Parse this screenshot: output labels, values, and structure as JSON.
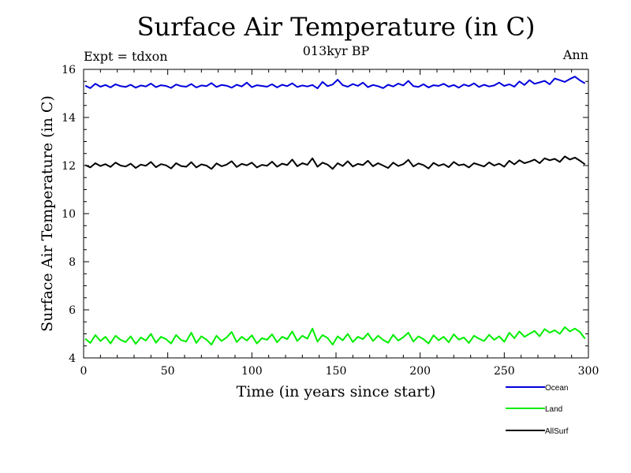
{
  "chart_data": {
    "type": "line",
    "title": "Surface Air Temperature (in C)",
    "subtitle": "013kyr BP",
    "experiment_label": "Expt = tdxon",
    "season_label": "Ann",
    "xlabel": "Time (in years since start)",
    "ylabel": "Surface Air Temperature (in C)",
    "xlim": [
      0,
      300
    ],
    "ylim": [
      4,
      16
    ],
    "x_ticks": [
      "0",
      "50",
      "100",
      "150",
      "200",
      "250",
      "300"
    ],
    "y_ticks": [
      "4",
      "6",
      "8",
      "10",
      "12",
      "14",
      "16"
    ],
    "grid": false,
    "legend_position": "below-right",
    "series": [
      {
        "name": "Ocean",
        "color": "#0000dd",
        "x_start": 1,
        "x_step": 3,
        "values": [
          15.32,
          15.22,
          15.4,
          15.28,
          15.35,
          15.25,
          15.38,
          15.3,
          15.27,
          15.36,
          15.24,
          15.33,
          15.29,
          15.41,
          15.26,
          15.34,
          15.31,
          15.23,
          15.37,
          15.3,
          15.28,
          15.39,
          15.25,
          15.33,
          15.3,
          15.43,
          15.27,
          15.35,
          15.32,
          15.24,
          15.36,
          15.29,
          15.45,
          15.26,
          15.34,
          15.31,
          15.28,
          15.38,
          15.25,
          15.36,
          15.3,
          15.42,
          15.27,
          15.33,
          15.29,
          15.35,
          15.21,
          15.48,
          15.3,
          15.37,
          15.57,
          15.34,
          15.28,
          15.39,
          15.31,
          15.45,
          15.26,
          15.35,
          15.3,
          15.22,
          15.36,
          15.29,
          15.41,
          15.33,
          15.52,
          15.3,
          15.27,
          15.38,
          15.25,
          15.34,
          15.31,
          15.4,
          15.28,
          15.35,
          15.24,
          15.37,
          15.3,
          15.42,
          15.27,
          15.36,
          15.29,
          15.33,
          15.45,
          15.31,
          15.38,
          15.28,
          15.5,
          15.35,
          15.55,
          15.4,
          15.46,
          15.52,
          15.38,
          15.62,
          15.55,
          15.48,
          15.6,
          15.7,
          15.54,
          15.42
        ]
      },
      {
        "name": "Land",
        "color": "#00ee00",
        "x_start": 1,
        "x_step": 3,
        "values": [
          4.8,
          4.62,
          4.95,
          4.7,
          4.88,
          4.6,
          4.92,
          4.75,
          4.66,
          4.9,
          4.58,
          4.85,
          4.72,
          5.0,
          4.63,
          4.88,
          4.78,
          4.6,
          4.95,
          4.74,
          4.68,
          5.05,
          4.62,
          4.9,
          4.76,
          4.55,
          4.92,
          4.7,
          4.85,
          5.08,
          4.66,
          4.88,
          4.72,
          4.94,
          4.6,
          4.82,
          4.75,
          4.98,
          4.65,
          4.88,
          4.78,
          5.1,
          4.7,
          4.92,
          4.8,
          5.22,
          4.68,
          4.95,
          4.83,
          4.55,
          4.9,
          4.73,
          5.0,
          4.66,
          4.88,
          4.78,
          5.02,
          4.7,
          4.92,
          4.75,
          4.63,
          4.96,
          4.72,
          4.86,
          5.05,
          4.68,
          4.9,
          4.78,
          4.6,
          4.94,
          4.73,
          4.88,
          4.65,
          4.98,
          4.76,
          4.85,
          4.62,
          4.92,
          4.8,
          4.7,
          4.96,
          4.75,
          4.9,
          4.67,
          5.05,
          4.82,
          5.1,
          4.88,
          5.0,
          5.12,
          4.9,
          5.2,
          5.05,
          5.15,
          5.0,
          5.28,
          5.1,
          5.22,
          5.08,
          4.8
        ]
      },
      {
        "name": "AllSurf",
        "color": "#000000",
        "x_start": 1,
        "x_step": 3,
        "values": [
          12.02,
          11.92,
          12.1,
          11.98,
          12.06,
          11.94,
          12.12,
          12.0,
          11.96,
          12.08,
          11.9,
          12.04,
          11.99,
          12.15,
          11.93,
          12.06,
          12.01,
          11.88,
          12.1,
          11.98,
          11.95,
          12.14,
          11.92,
          12.05,
          12.0,
          11.86,
          12.09,
          11.97,
          12.04,
          12.18,
          11.94,
          12.07,
          12.01,
          12.12,
          11.92,
          12.03,
          11.99,
          12.16,
          11.95,
          12.08,
          12.02,
          12.25,
          11.97,
          12.1,
          12.03,
          12.3,
          11.95,
          12.12,
          12.04,
          11.86,
          12.1,
          11.98,
          12.18,
          11.96,
          12.07,
          12.02,
          12.2,
          11.97,
          12.1,
          12.0,
          11.9,
          12.12,
          11.98,
          12.06,
          12.24,
          11.96,
          12.09,
          12.02,
          11.88,
          12.11,
          11.99,
          12.06,
          11.93,
          12.15,
          12.01,
          12.05,
          11.92,
          12.1,
          12.03,
          11.96,
          12.13,
          12.0,
          12.08,
          11.95,
          12.2,
          12.05,
          12.22,
          12.1,
          12.16,
          12.25,
          12.1,
          12.3,
          12.22,
          12.28,
          12.15,
          12.38,
          12.25,
          12.33,
          12.2,
          12.05
        ]
      }
    ]
  }
}
